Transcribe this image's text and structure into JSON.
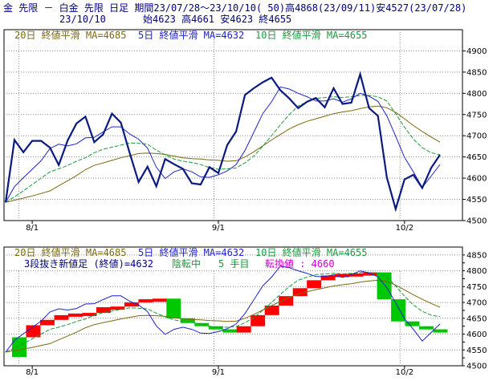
{
  "header": {
    "line1": "金 先限 － 白金 先限 日足 期間23/07/28～23/10/10( 50)高4868(23/09/11)安4527(23/07/28)",
    "date": "23/10/10",
    "ohlc": "始4623 高4661 安4623 終4655"
  },
  "legend_top": {
    "ma20": "20日 終値平滑 MA=4685",
    "ma5": "5日 終値平滑 MA=4632",
    "ma10": "10日 終値平滑 MA=4655"
  },
  "legend_bottom": {
    "ma20": "20日 終値平滑 MA=4685",
    "ma5": "5日 終値平滑 MA=4632",
    "ma10": "10日 終値平滑 MA=4655",
    "info1": "3段抜き新値足 (終値)=4632",
    "info2": "陰転中",
    "info3": "5 手目",
    "info4": "転換値 : 4660"
  },
  "colors": {
    "price": "#0a1a80",
    "ma5": "#1e24c8",
    "ma10": "#1a9a3a",
    "ma20": "#7a6a10",
    "up": "#ff0000",
    "down": "#00c800",
    "grid": "#8a8a8a",
    "header_text": "#000080",
    "highlight": "#cc00cc"
  },
  "chart_data": [
    {
      "type": "line",
      "x_labels": [
        "8/1",
        "9/1",
        "10/2"
      ],
      "ylim": [
        4500,
        4950
      ],
      "y_ticks": [
        4500,
        4550,
        4600,
        4650,
        4700,
        4750,
        4800,
        4850,
        4900
      ],
      "grid": true,
      "series": [
        {
          "name": "終値",
          "values": [
            4543,
            4690,
            4661,
            4688,
            4688,
            4672,
            4631,
            4689,
            4729,
            4745,
            4685,
            4703,
            4752,
            4731,
            4659,
            4591,
            4627,
            4581,
            4645,
            4633,
            4622,
            4588,
            4585,
            4626,
            4612,
            4678,
            4710,
            4796,
            4812,
            4826,
            4837,
            4807,
            4788,
            4765,
            4780,
            4789,
            4767,
            4812,
            4775,
            4778,
            4845,
            4765,
            4747,
            4602,
            4527,
            4597,
            4608,
            4577,
            4624,
            4655
          ]
        },
        {
          "name": "5日 終値平滑",
          "values": [
            4543,
            4580,
            4601,
            4621,
            4641,
            4670,
            4680,
            4676,
            4681,
            4695,
            4696,
            4709,
            4721,
            4721,
            4704,
            4692,
            4671,
            4626,
            4599,
            4615,
            4622,
            4615,
            4603,
            4602,
            4608,
            4617,
            4632,
            4665,
            4708,
            4752,
            4780,
            4815,
            4810,
            4800,
            4792,
            4782,
            4782,
            4787,
            4779,
            4787,
            4800,
            4793,
            4781,
            4747,
            4699,
            4649,
            4615,
            4578,
            4605,
            4632
          ]
        },
        {
          "name": "10日 終値平滑",
          "values": [
            4543,
            4556,
            4570,
            4585,
            4600,
            4615,
            4622,
            4630,
            4640,
            4648,
            4660,
            4668,
            4673,
            4678,
            4683,
            4682,
            4680,
            4666,
            4655,
            4645,
            4640,
            4637,
            4632,
            4625,
            4621,
            4622,
            4624,
            4636,
            4652,
            4675,
            4700,
            4726,
            4750,
            4770,
            4780,
            4788,
            4790,
            4792,
            4790,
            4792,
            4795,
            4795,
            4792,
            4782,
            4752,
            4720,
            4692,
            4672,
            4660,
            4655
          ]
        },
        {
          "name": "20日 終値平滑",
          "values": [
            4543,
            4548,
            4553,
            4558,
            4564,
            4570,
            4582,
            4594,
            4606,
            4620,
            4630,
            4636,
            4642,
            4648,
            4653,
            4658,
            4659,
            4658,
            4656,
            4652,
            4648,
            4646,
            4645,
            4643,
            4642,
            4640,
            4641,
            4650,
            4662,
            4676,
            4690,
            4703,
            4716,
            4726,
            4734,
            4740,
            4746,
            4752,
            4756,
            4759,
            4764,
            4768,
            4770,
            4766,
            4755,
            4740,
            4724,
            4710,
            4697,
            4685
          ]
        }
      ]
    },
    {
      "type": "bar",
      "title": "3段抜き新値足 (終値)",
      "x_labels": [
        "8/1",
        "9/1",
        "10/2"
      ],
      "ylim": [
        4500,
        4875
      ],
      "y_ticks": [
        4500,
        4525,
        4550,
        4575,
        4600,
        4625,
        4650,
        4675,
        4700,
        4725,
        4750,
        4775,
        4800,
        4825,
        4850
      ],
      "y_tick_labels": [
        "4500",
        "",
        "4550",
        "",
        "4600",
        "",
        "4650",
        "",
        "4700",
        "",
        "4750",
        "",
        "4800",
        "",
        "4850"
      ],
      "grid": true,
      "bricks": [
        {
          "dir": "down",
          "from": 4590,
          "to": 4528
        },
        {
          "dir": "up",
          "from": 4590,
          "to": 4628
        },
        {
          "dir": "up",
          "from": 4628,
          "to": 4645
        },
        {
          "dir": "up",
          "from": 4645,
          "to": 4660
        },
        {
          "dir": "up",
          "from": 4660,
          "to": 4665
        },
        {
          "dir": "up",
          "from": 4665,
          "to": 4667
        },
        {
          "dir": "up",
          "from": 4667,
          "to": 4685
        },
        {
          "dir": "up",
          "from": 4685,
          "to": 4687
        },
        {
          "dir": "up",
          "from": 4687,
          "to": 4700
        },
        {
          "dir": "up",
          "from": 4700,
          "to": 4710
        },
        {
          "dir": "up",
          "from": 4710,
          "to": 4712
        },
        {
          "dir": "down",
          "from": 4712,
          "to": 4650
        },
        {
          "dir": "down",
          "from": 4650,
          "to": 4635
        },
        {
          "dir": "down",
          "from": 4635,
          "to": 4625
        },
        {
          "dir": "down",
          "from": 4625,
          "to": 4615
        },
        {
          "dir": "down",
          "from": 4615,
          "to": 4605
        },
        {
          "dir": "up",
          "from": 4605,
          "to": 4625
        },
        {
          "dir": "up",
          "from": 4625,
          "to": 4660
        },
        {
          "dir": "up",
          "from": 4660,
          "to": 4690
        },
        {
          "dir": "up",
          "from": 4690,
          "to": 4720
        },
        {
          "dir": "up",
          "from": 4720,
          "to": 4745
        },
        {
          "dir": "up",
          "from": 4745,
          "to": 4770
        },
        {
          "dir": "up",
          "from": 4770,
          "to": 4785
        },
        {
          "dir": "up",
          "from": 4785,
          "to": 4790
        },
        {
          "dir": "up",
          "from": 4790,
          "to": 4792
        },
        {
          "dir": "up",
          "from": 4792,
          "to": 4795
        },
        {
          "dir": "down",
          "from": 4795,
          "to": 4710
        },
        {
          "dir": "down",
          "from": 4710,
          "to": 4640
        },
        {
          "dir": "down",
          "from": 4640,
          "to": 4625
        },
        {
          "dir": "down",
          "from": 4625,
          "to": 4615
        },
        {
          "dir": "down",
          "from": 4615,
          "to": 4608
        }
      ],
      "series": [
        {
          "name": "5日 終値平滑",
          "values": [
            4543,
            4580,
            4601,
            4621,
            4641,
            4670,
            4680,
            4676,
            4681,
            4695,
            4696,
            4709,
            4721,
            4721,
            4704,
            4692,
            4671,
            4626,
            4599,
            4615,
            4622,
            4615,
            4603,
            4602,
            4608,
            4617,
            4632,
            4665,
            4708,
            4752,
            4780,
            4815,
            4810,
            4800,
            4792,
            4782,
            4782,
            4787,
            4779,
            4787,
            4800,
            4793,
            4781,
            4747,
            4699,
            4649,
            4615,
            4578,
            4605,
            4632
          ]
        },
        {
          "name": "10日 終値平滑",
          "values": [
            4543,
            4556,
            4570,
            4585,
            4600,
            4615,
            4622,
            4630,
            4640,
            4648,
            4660,
            4668,
            4673,
            4678,
            4683,
            4682,
            4680,
            4666,
            4655,
            4645,
            4640,
            4637,
            4632,
            4625,
            4621,
            4622,
            4624,
            4636,
            4652,
            4675,
            4700,
            4726,
            4750,
            4770,
            4780,
            4788,
            4790,
            4792,
            4790,
            4792,
            4795,
            4795,
            4792,
            4782,
            4752,
            4720,
            4692,
            4672,
            4660,
            4655
          ]
        },
        {
          "name": "20日 終値平滑",
          "values": [
            4543,
            4548,
            4553,
            4558,
            4564,
            4570,
            4582,
            4594,
            4606,
            4620,
            4630,
            4636,
            4642,
            4648,
            4653,
            4658,
            4659,
            4658,
            4656,
            4652,
            4648,
            4646,
            4645,
            4643,
            4642,
            4640,
            4641,
            4650,
            4662,
            4676,
            4690,
            4703,
            4716,
            4726,
            4734,
            4740,
            4746,
            4752,
            4756,
            4759,
            4764,
            4768,
            4770,
            4766,
            4755,
            4740,
            4724,
            4710,
            4697,
            4685
          ]
        }
      ]
    }
  ]
}
